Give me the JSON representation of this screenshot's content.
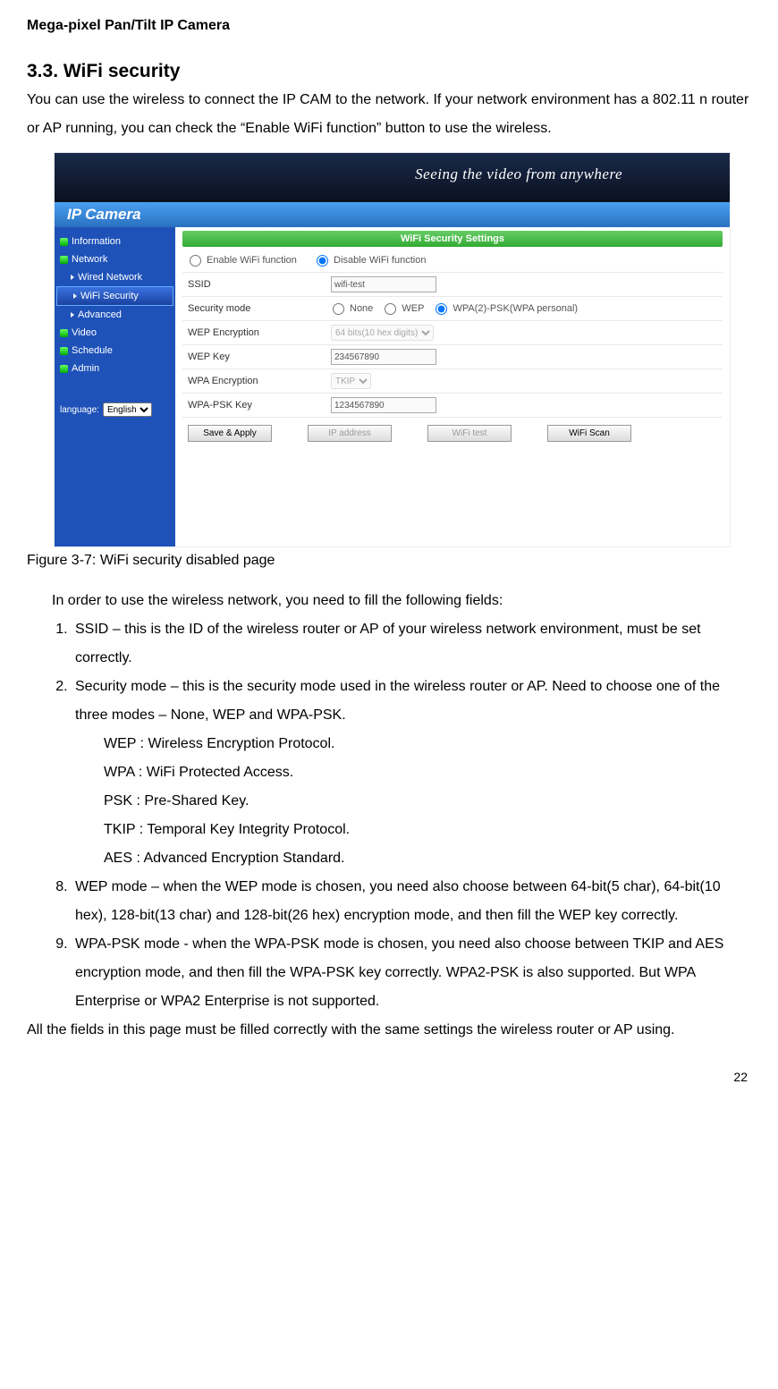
{
  "header": "Mega-pixel Pan/Tilt IP Camera",
  "section_no": "3.3.",
  "section_title": "WiFi security",
  "intro": "You can use the wireless to connect the IP CAM to the network. If your network environment has a 802.11 n router or AP running, you can check the “Enable WiFi function” button to use the wireless.",
  "shot": {
    "banner_script": "Seeing the video from anywhere",
    "title": "IP Camera",
    "sidebar": {
      "items": [
        {
          "label": "Information",
          "type": "top"
        },
        {
          "label": "Network",
          "type": "top"
        },
        {
          "label": "Wired Network",
          "type": "sub"
        },
        {
          "label": "WiFi Security",
          "type": "sub",
          "selected": true
        },
        {
          "label": "Advanced",
          "type": "sub"
        },
        {
          "label": "Video",
          "type": "top"
        },
        {
          "label": "Schedule",
          "type": "top"
        },
        {
          "label": "Admin",
          "type": "top"
        }
      ],
      "language_label": "language:",
      "language_value": "English"
    },
    "panel": {
      "heading": "WiFi Security Settings",
      "enable_radio": {
        "enable": "Enable WiFi function",
        "disable": "Disable WiFi function",
        "selected": "disable"
      },
      "rows": [
        {
          "label": "SSID",
          "type": "text",
          "value": "wifi-test",
          "disabled": true
        },
        {
          "label": "Security mode",
          "type": "radios",
          "options": [
            "None",
            "WEP",
            "WPA(2)-PSK(WPA personal)"
          ],
          "selected": 2
        },
        {
          "label": "WEP Encryption",
          "type": "select",
          "value": "64 bits(10 hex digits)",
          "disabled": true
        },
        {
          "label": "WEP Key",
          "type": "text",
          "value": "234567890",
          "disabled": true
        },
        {
          "label": "WPA Encryption",
          "type": "select",
          "value": "TKIP",
          "disabled": true
        },
        {
          "label": "WPA-PSK Key",
          "type": "text",
          "value": "1234567890",
          "disabled": true
        }
      ],
      "buttons": [
        {
          "label": "Save & Apply",
          "disabled": false
        },
        {
          "label": "IP address",
          "disabled": true
        },
        {
          "label": "WiFi test",
          "disabled": true
        },
        {
          "label": "WiFi Scan",
          "disabled": false
        }
      ]
    }
  },
  "caption": "Figure 3-7: WiFi security disabled page",
  "lead": "In order to use the wireless network, you need to fill the following fields:",
  "list": [
    "SSID – this is the ID of the wireless router or AP of your wireless network environment, must be set correctly.",
    "Security mode – this is the security mode used in the wireless router or AP. Need to choose one of the three modes – None, WEP and WPA-PSK.",
    "WEP mode – when the WEP mode is chosen, you need also choose between 64-bit(5 char), 64-bit(10 hex), 128-bit(13 char) and 128-bit(26 hex) encryption mode, and then fill the WEP key correctly.",
    "WPA-PSK mode - when the WPA-PSK mode is chosen, you need also choose between TKIP and AES encryption mode, and then fill the WPA-PSK key correctly. WPA2-PSK is also supported. But WPA Enterprise or WPA2 Enterprise is not supported."
  ],
  "defs": [
    "WEP : Wireless Encryption Protocol.",
    "WPA : WiFi Protected Access.",
    "PSK : Pre-Shared Key.",
    "TKIP : Temporal Key Integrity Protocol.",
    "AES : Advanced Encryption Standard."
  ],
  "tail": "All the fields in this page must be filled correctly with the same settings the wireless router or AP using.",
  "page": "22"
}
